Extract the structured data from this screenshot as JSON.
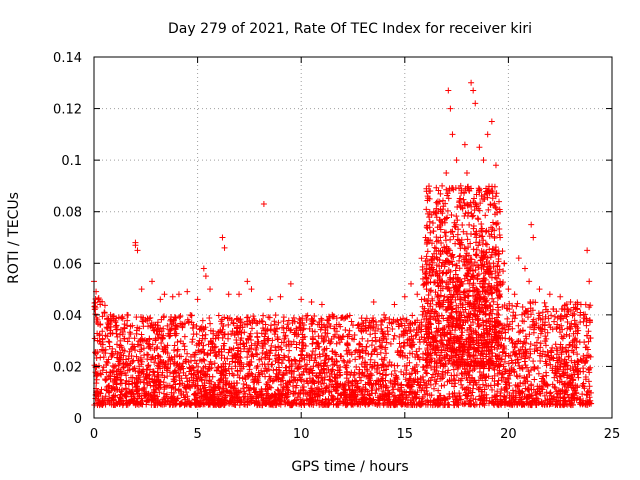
{
  "chart_data": {
    "type": "scatter",
    "title": "Day 279 of 2021, Rate Of TEC Index for receiver kiri",
    "xlabel": "GPS time / hours",
    "ylabel": "ROTI / TECUs",
    "xlim": [
      0,
      25
    ],
    "ylim": [
      0,
      0.14
    ],
    "xticks": [
      0,
      5,
      10,
      15,
      20,
      25
    ],
    "xtick_labels": [
      "0",
      "5",
      "10",
      "15",
      "20",
      "25"
    ],
    "yticks": [
      0,
      0.02,
      0.04,
      0.06,
      0.08,
      0.1,
      0.12,
      0.14
    ],
    "ytick_labels": [
      "0",
      "0.02",
      "0.04",
      "0.06",
      "0.08",
      "0.1",
      "0.12",
      "0.14"
    ],
    "grid": true,
    "marker": "+",
    "color": "#ff0000",
    "series": [
      {
        "name": "ROTI",
        "description_points": [
          [
            0.0,
            0.053
          ],
          [
            0.1,
            0.049
          ],
          [
            0.2,
            0.046
          ],
          [
            0.3,
            0.044
          ],
          [
            0.5,
            0.041
          ],
          [
            0.8,
            0.04
          ],
          [
            1.2,
            0.039
          ],
          [
            1.6,
            0.04
          ],
          [
            2.0,
            0.068
          ],
          [
            2.0,
            0.067
          ],
          [
            2.1,
            0.065
          ],
          [
            2.3,
            0.05
          ],
          [
            2.8,
            0.053
          ],
          [
            3.2,
            0.046
          ],
          [
            3.4,
            0.048
          ],
          [
            3.8,
            0.047
          ],
          [
            4.1,
            0.048
          ],
          [
            4.5,
            0.049
          ],
          [
            5.0,
            0.046
          ],
          [
            5.3,
            0.058
          ],
          [
            5.4,
            0.055
          ],
          [
            5.6,
            0.05
          ],
          [
            6.2,
            0.07
          ],
          [
            6.3,
            0.066
          ],
          [
            6.5,
            0.048
          ],
          [
            7.0,
            0.048
          ],
          [
            7.4,
            0.053
          ],
          [
            7.6,
            0.05
          ],
          [
            8.2,
            0.083
          ],
          [
            8.5,
            0.046
          ],
          [
            9.0,
            0.047
          ],
          [
            9.5,
            0.052
          ],
          [
            10.0,
            0.046
          ],
          [
            10.5,
            0.045
          ],
          [
            11.0,
            0.044
          ],
          [
            11.5,
            0.04
          ],
          [
            12.0,
            0.039
          ],
          [
            12.5,
            0.036
          ],
          [
            13.0,
            0.034
          ],
          [
            13.5,
            0.045
          ],
          [
            14.0,
            0.04
          ],
          [
            14.5,
            0.044
          ],
          [
            15.0,
            0.047
          ],
          [
            15.3,
            0.052
          ],
          [
            15.6,
            0.048
          ],
          [
            16.0,
            0.07
          ],
          [
            16.2,
            0.085
          ],
          [
            16.4,
            0.08
          ],
          [
            16.6,
            0.084
          ],
          [
            16.8,
            0.09
          ],
          [
            17.0,
            0.095
          ],
          [
            17.1,
            0.127
          ],
          [
            17.2,
            0.12
          ],
          [
            17.3,
            0.11
          ],
          [
            17.5,
            0.1
          ],
          [
            17.7,
            0.09
          ],
          [
            17.9,
            0.106
          ],
          [
            18.0,
            0.095
          ],
          [
            18.2,
            0.13
          ],
          [
            18.3,
            0.127
          ],
          [
            18.4,
            0.122
          ],
          [
            18.6,
            0.105
          ],
          [
            18.8,
            0.1
          ],
          [
            19.0,
            0.11
          ],
          [
            19.2,
            0.115
          ],
          [
            19.4,
            0.098
          ],
          [
            19.6,
            0.07
          ],
          [
            19.8,
            0.06
          ],
          [
            20.0,
            0.05
          ],
          [
            20.3,
            0.048
          ],
          [
            20.5,
            0.062
          ],
          [
            20.8,
            0.058
          ],
          [
            21.0,
            0.053
          ],
          [
            21.1,
            0.075
          ],
          [
            21.2,
            0.07
          ],
          [
            21.5,
            0.05
          ],
          [
            22.0,
            0.048
          ],
          [
            22.5,
            0.047
          ],
          [
            23.0,
            0.045
          ],
          [
            23.5,
            0.044
          ],
          [
            23.8,
            0.065
          ],
          [
            23.9,
            0.053
          ]
        ],
        "baseline_band": [
          0.005,
          0.035
        ]
      }
    ]
  }
}
